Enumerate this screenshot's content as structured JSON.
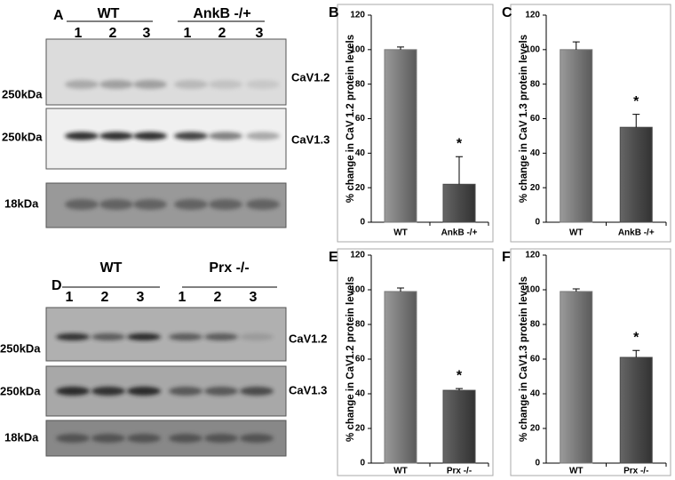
{
  "chart_data": [
    {
      "type": "bar",
      "panel": "B",
      "ylabel": "% change in CaV 1.2 protein levels",
      "categories": [
        "WT",
        "AnkB -/+"
      ],
      "values": [
        100,
        22
      ],
      "errors": [
        1.5,
        16
      ],
      "colors": [
        "#7a7a7a",
        "#4a4a4a"
      ],
      "ylim": [
        0,
        120
      ],
      "yticks": [
        0,
        20,
        40,
        60,
        80,
        100,
        120
      ],
      "annotation": "*"
    },
    {
      "type": "bar",
      "panel": "C",
      "ylabel": "% change in CaV 1.3 protein levels",
      "categories": [
        "WT",
        "AnkB -/+"
      ],
      "values": [
        100,
        55
      ],
      "errors": [
        4.5,
        7.5
      ],
      "colors": [
        "#7a7a7a",
        "#4a4a4a"
      ],
      "ylim": [
        0,
        120
      ],
      "yticks": [
        0,
        20,
        40,
        60,
        80,
        100,
        120
      ],
      "annotation": "*"
    },
    {
      "type": "bar",
      "panel": "E",
      "ylabel": "% change in CaV1.2 protein levels",
      "categories": [
        "WT",
        "Prx -/-"
      ],
      "values": [
        99,
        42
      ],
      "errors": [
        2,
        1
      ],
      "colors": [
        "#7a7a7a",
        "#4a4a4a"
      ],
      "ylim": [
        0,
        120
      ],
      "yticks": [
        0,
        20,
        40,
        60,
        80,
        100,
        120
      ],
      "annotation": "*"
    },
    {
      "type": "bar",
      "panel": "F",
      "ylabel": "% change in CaV1.3 protein levels",
      "categories": [
        "WT",
        "Prx -/-"
      ],
      "values": [
        99,
        61
      ],
      "errors": [
        1.5,
        4
      ],
      "colors": [
        "#7a7a7a",
        "#4a4a4a"
      ],
      "ylim": [
        0,
        120
      ],
      "yticks": [
        0,
        20,
        40,
        60,
        80,
        100,
        120
      ],
      "annotation": "*"
    }
  ],
  "blots": [
    {
      "panel": "A",
      "groups": [
        "WT",
        "AnkB -/+"
      ],
      "lanes": [
        "1",
        "2",
        "3",
        "1",
        "2",
        "3"
      ],
      "rows": [
        {
          "marker": "250kDa",
          "protein": "CaV1.2"
        },
        {
          "marker": "250kDa",
          "protein": "CaV1.3"
        },
        {
          "marker": "18kDa"
        }
      ]
    },
    {
      "panel": "D",
      "groups": [
        "WT",
        "Prx -/-"
      ],
      "lanes": [
        "1",
        "2",
        "3",
        "1",
        "2",
        "3"
      ],
      "rows": [
        {
          "marker": "250kDa",
          "protein": "CaV1.2"
        },
        {
          "marker": "250kDa",
          "protein": "CaV1.3"
        },
        {
          "marker": "18kDa"
        }
      ]
    }
  ]
}
